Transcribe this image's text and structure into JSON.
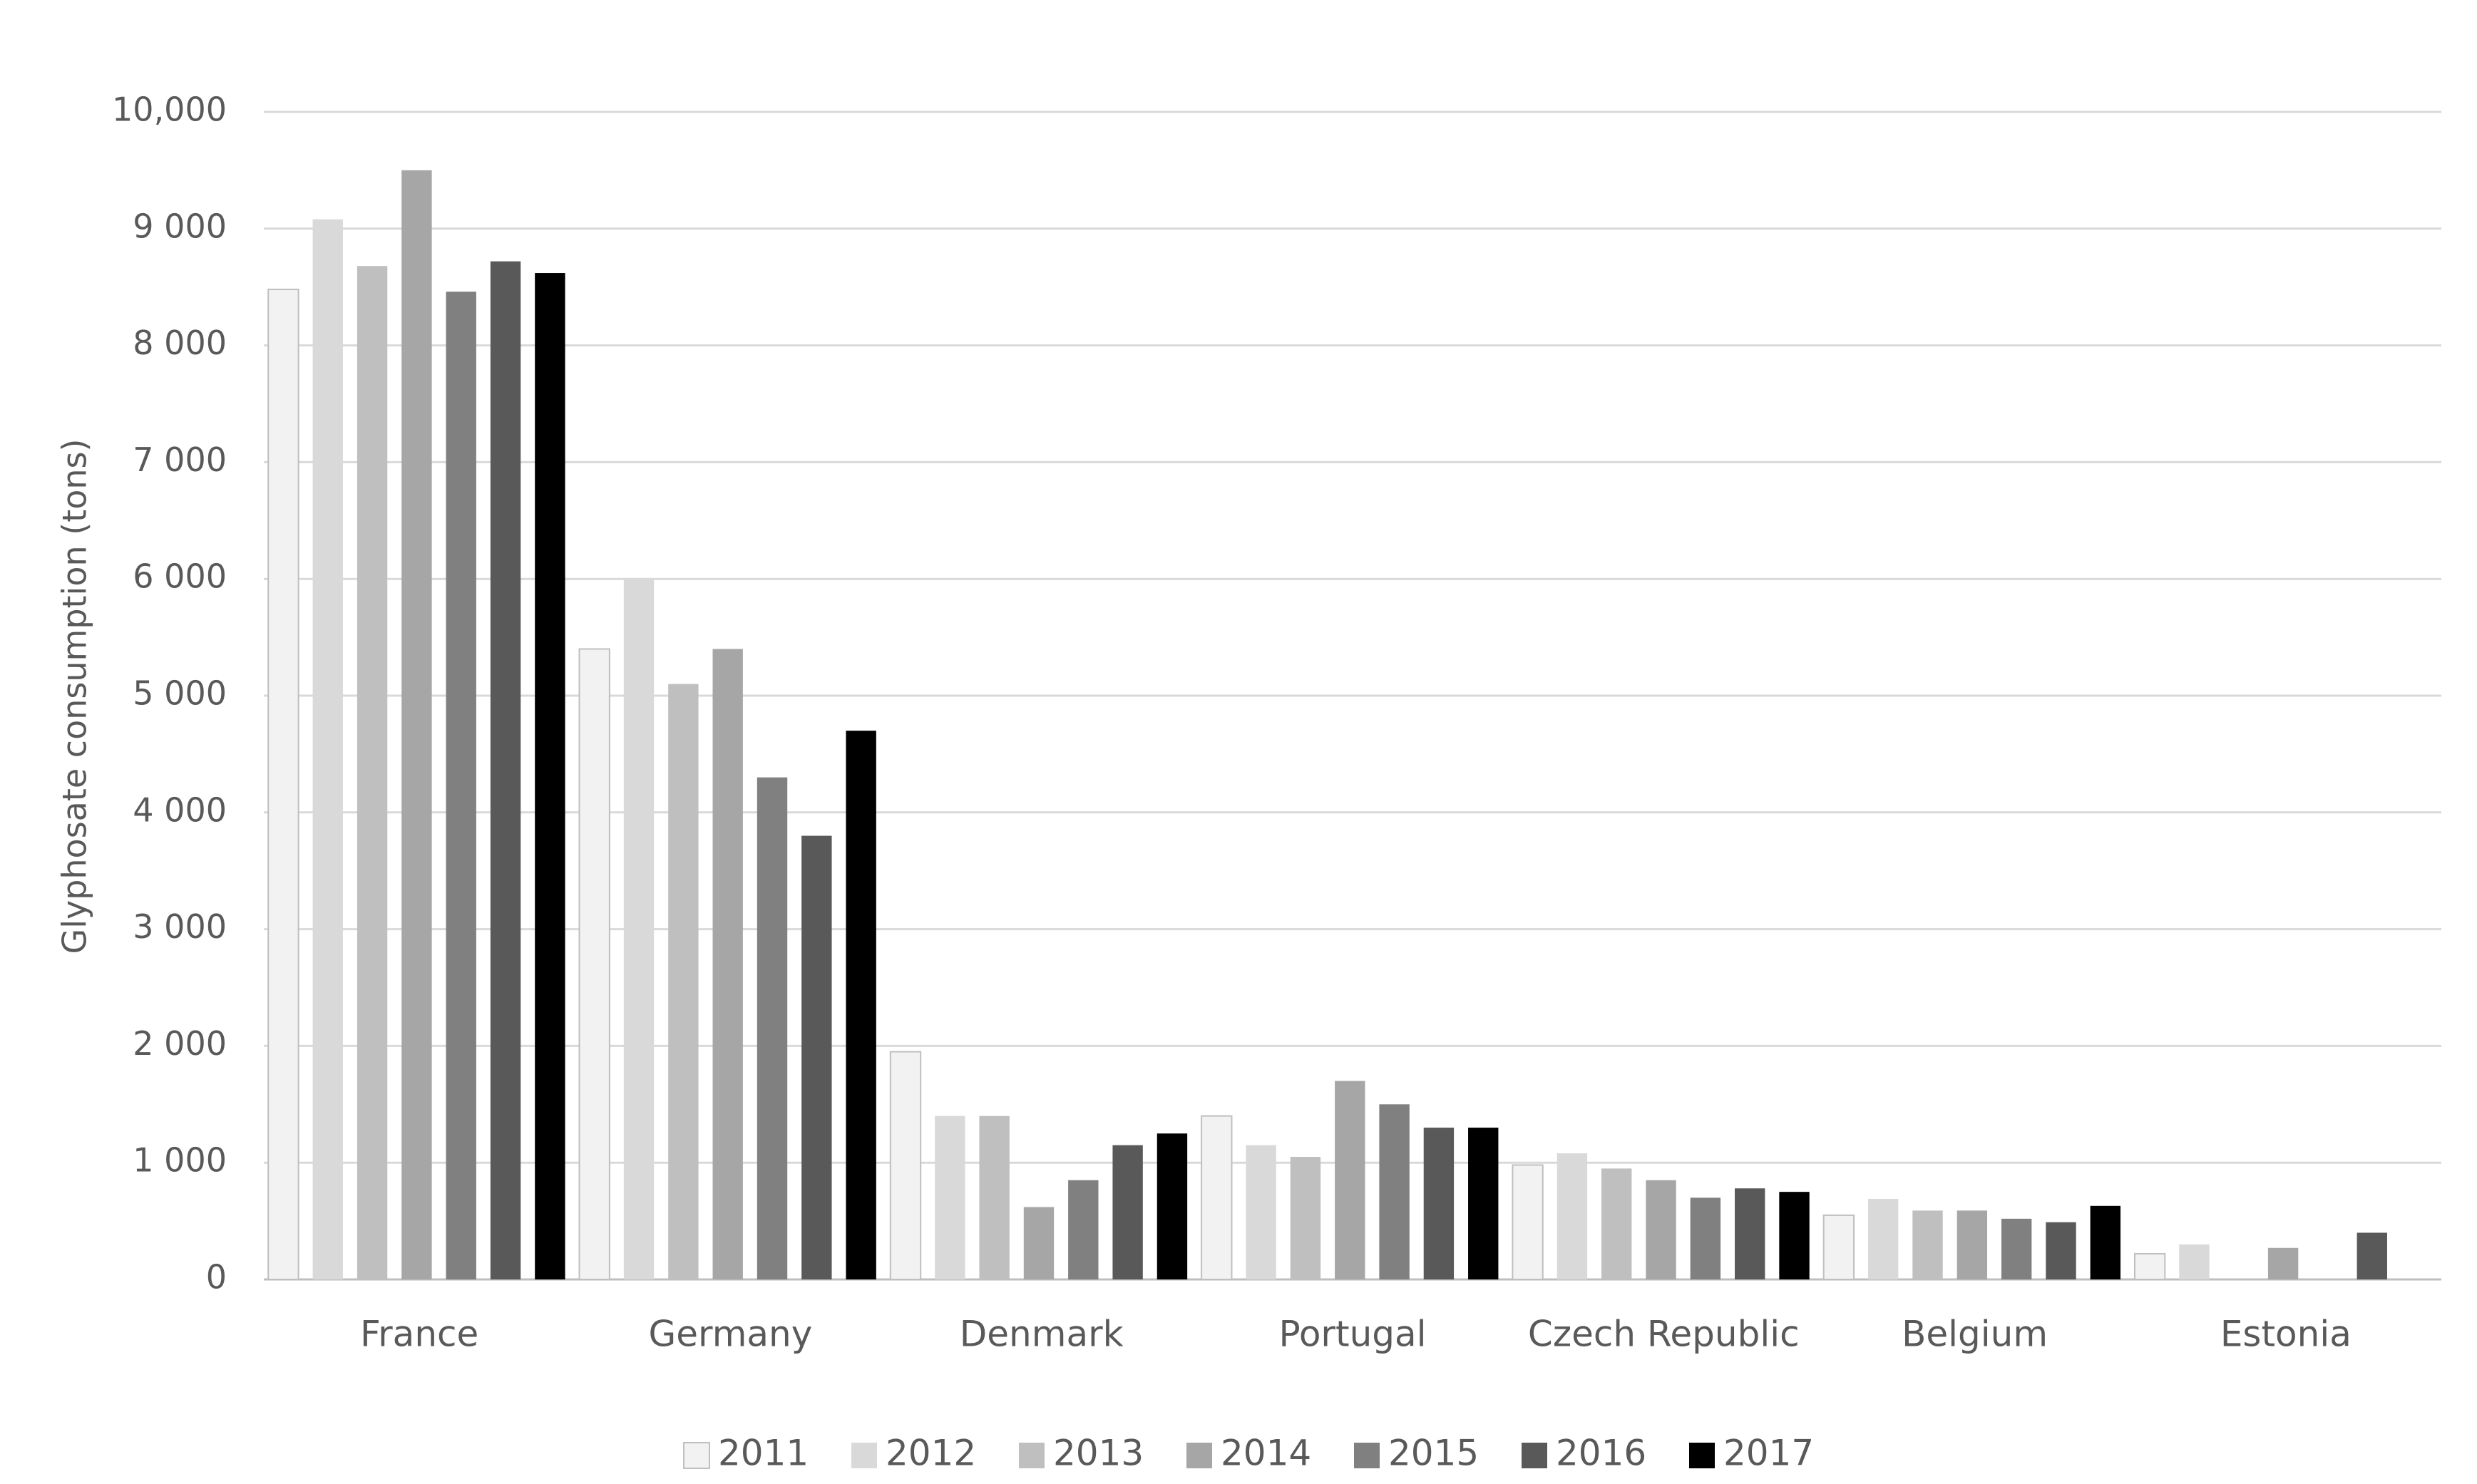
{
  "chart_data": {
    "type": "bar",
    "y_label": "Glyphosate consumption (tons)",
    "categories": [
      "France",
      "Germany",
      "Denmark",
      "Portugal",
      "Czech Republic",
      "Belgium",
      "Estonia"
    ],
    "series": [
      {
        "name": "2011",
        "color": "#f2f2f2",
        "values": [
          8480,
          5400,
          1950,
          1400,
          980,
          550,
          220
        ]
      },
      {
        "name": "2012",
        "color": "#d9d9d9",
        "values": [
          9080,
          6000,
          1400,
          1150,
          1080,
          690,
          300
        ]
      },
      {
        "name": "2013",
        "color": "#bfbfbf",
        "values": [
          8680,
          5100,
          1400,
          1050,
          950,
          590,
          null
        ]
      },
      {
        "name": "2014",
        "color": "#a6a6a6",
        "values": [
          9500,
          5400,
          620,
          1700,
          850,
          590,
          270
        ]
      },
      {
        "name": "2015",
        "color": "#808080",
        "values": [
          8460,
          4300,
          850,
          1500,
          700,
          520,
          null
        ]
      },
      {
        "name": "2016",
        "color": "#595959",
        "values": [
          8720,
          3800,
          1150,
          1300,
          780,
          490,
          400
        ]
      },
      {
        "name": "2017",
        "color": "#000000",
        "values": [
          8620,
          4700,
          1250,
          1300,
          750,
          630,
          null
        ]
      }
    ],
    "ylim": [
      0,
      10000
    ],
    "yticks": [
      0,
      {
        "value": 1000,
        "label": "1 000"
      },
      {
        "value": 2000,
        "label": "2 000"
      },
      {
        "value": 3000,
        "label": "3 000"
      },
      {
        "value": 4000,
        "label": "4 000"
      },
      {
        "value": 5000,
        "label": "5 000"
      },
      {
        "value": 6000,
        "label": "6 000"
      },
      {
        "value": 7000,
        "label": "7 000"
      },
      {
        "value": 8000,
        "label": "8 000"
      },
      {
        "value": 9000,
        "label": "9 000"
      },
      {
        "value": 10000,
        "label": "10,000"
      }
    ],
    "grid": true,
    "legend": "bottom"
  }
}
